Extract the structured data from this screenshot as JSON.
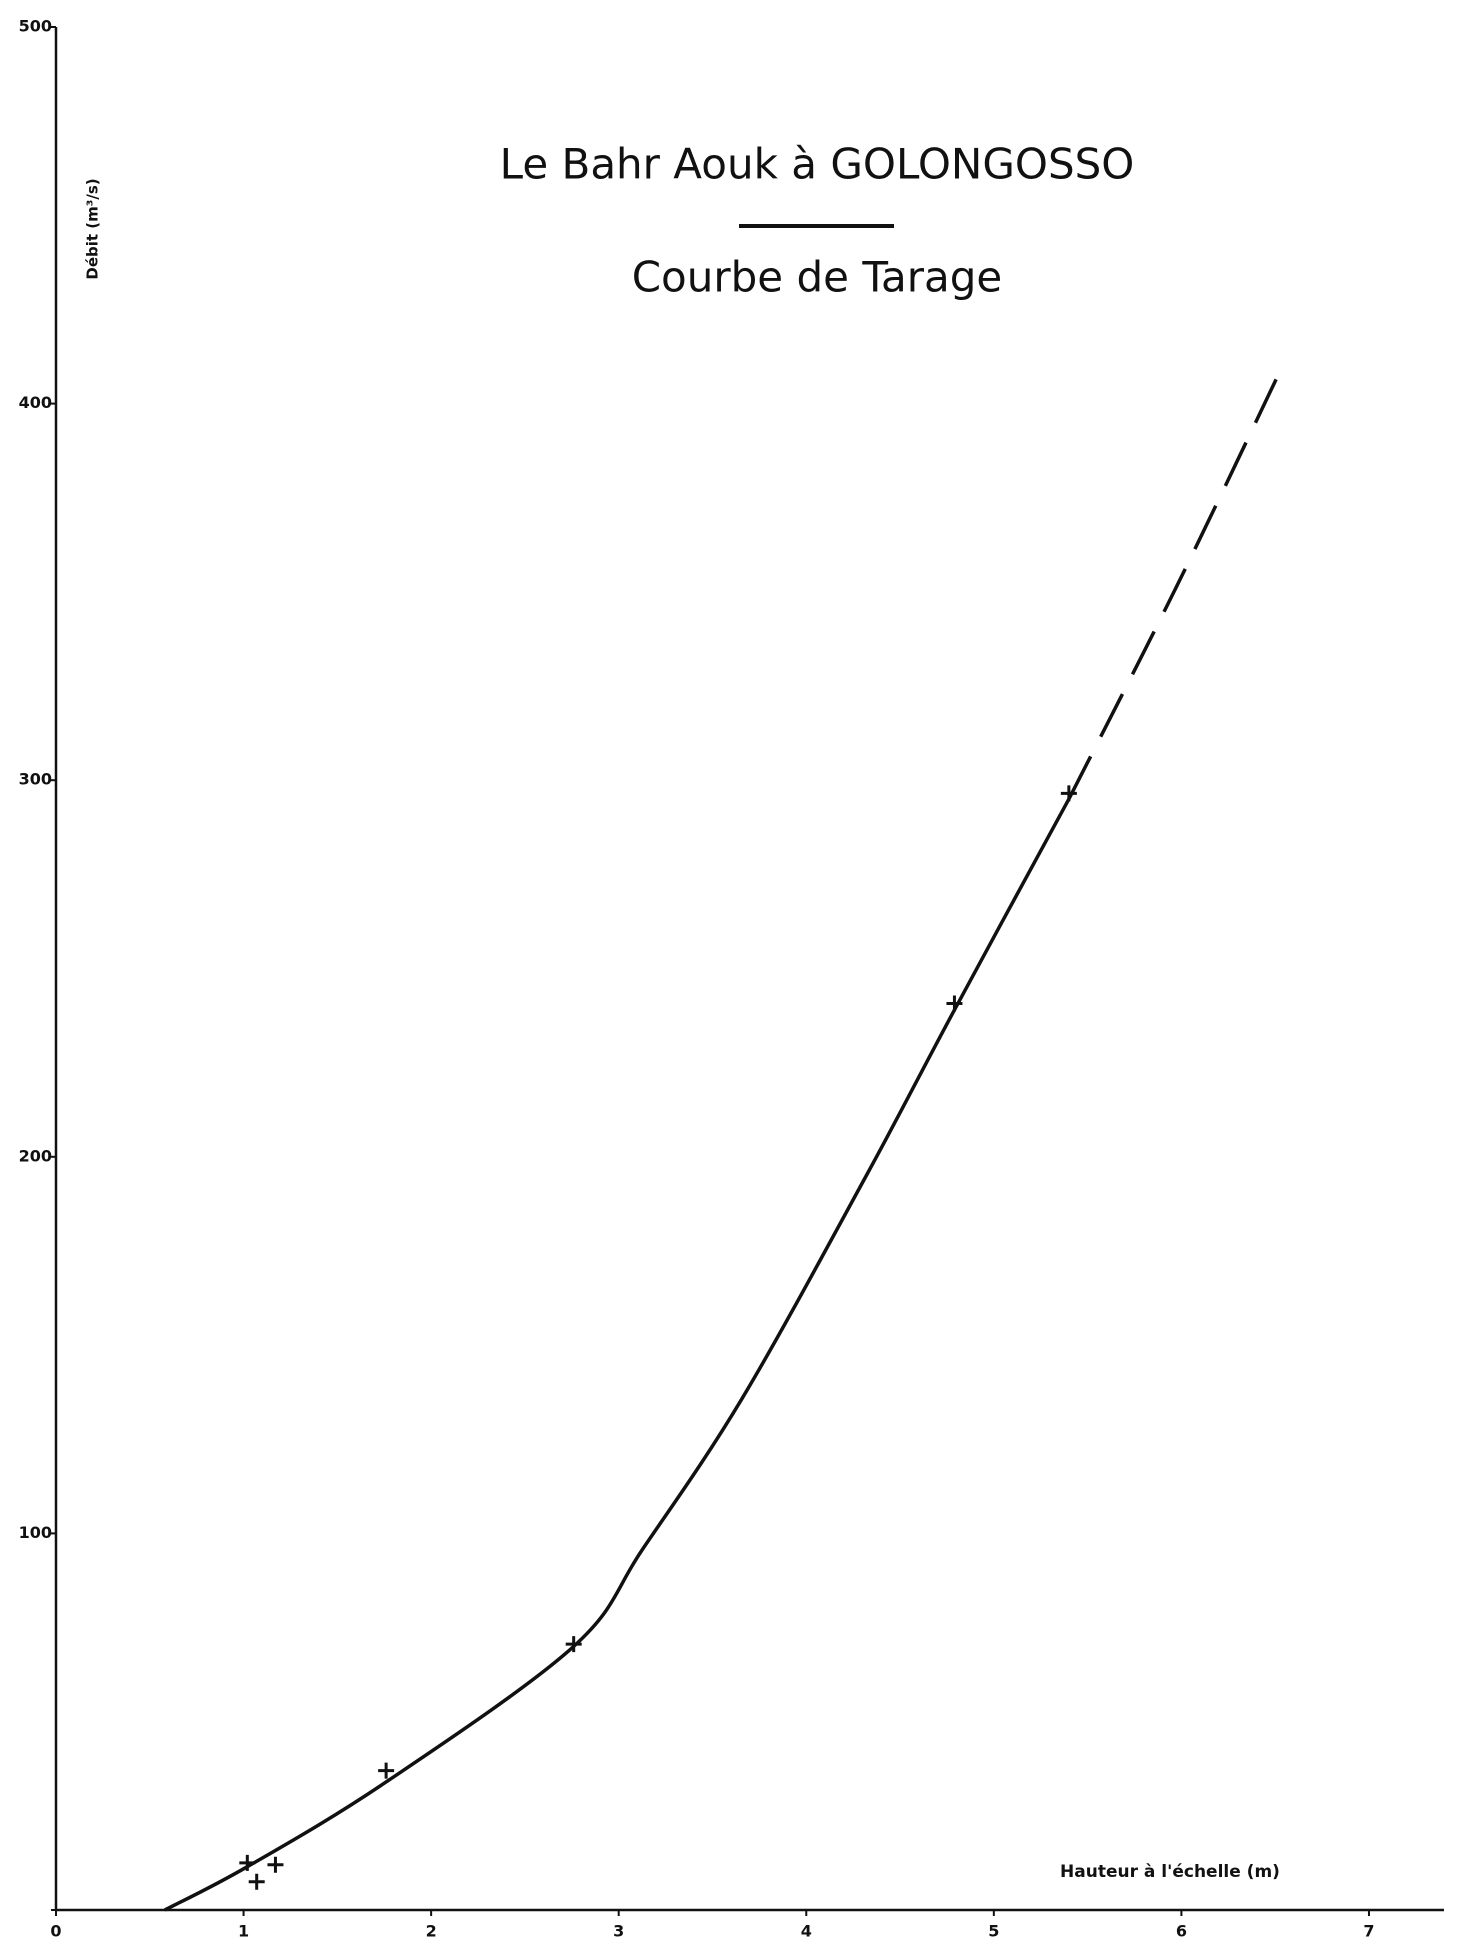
{
  "chart_data": {
    "type": "rating-curve",
    "title": "Le Bahr Aouk à GOLONGOSSO",
    "subtitle": "Courbe de Tarage",
    "ylabel": "Débit (m³/s)",
    "xlabel": "Hauteur à l'échelle (m)",
    "xlim": [
      0,
      7.4
    ],
    "xticks": [
      0,
      1,
      2,
      3,
      4,
      5,
      6,
      7
    ],
    "ylim": [
      0,
      500
    ],
    "yticks": [
      0,
      100,
      200,
      300,
      400,
      500
    ],
    "color": "#111111",
    "series": [
      {
        "style": "markers",
        "x": [
          1.02,
          1.07,
          1.17,
          1.76,
          2.76,
          4.79,
          5.4
        ],
        "values": [
          12.5,
          7.5,
          12,
          37,
          70.6,
          240.7,
          296.5
        ]
      },
      {
        "style": "solid",
        "x": [
          0.58,
          1.02,
          1.76,
          2.76,
          3.13,
          3.66,
          4.32,
          4.79,
          5.4
        ],
        "values": [
          0,
          11.5,
          34,
          70,
          96,
          136,
          195,
          239,
          295
        ]
      },
      {
        "style": "dashed",
        "x": [
          5.4,
          5.97,
          6.52
        ],
        "values": [
          295,
          351,
          408
        ]
      }
    ]
  }
}
